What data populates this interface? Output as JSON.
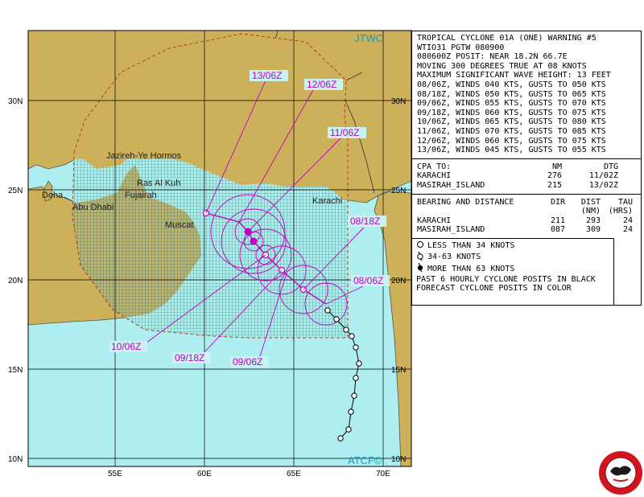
{
  "map": {
    "source_top": "JTWC",
    "source_bottom": "ATCF©",
    "lat_labels": [
      "30N",
      "25N",
      "20N",
      "15N",
      "10N"
    ],
    "lon_labels": [
      "55E",
      "60E",
      "65E",
      "70E"
    ],
    "places": [
      "Jazireh-Ye Hormos",
      "Ras Al Kuh",
      "Doha",
      "Abu Dhabi",
      "Fujairah",
      "Muscat",
      "Karachi"
    ],
    "forecast_labels": [
      "13/06Z",
      "12/06Z",
      "11/06Z",
      "08/18Z",
      "08/06Z",
      "10/06Z",
      "09/18Z",
      "09/06Z"
    ],
    "colors": {
      "land": "#cdb05a",
      "ocean": "#aeeef0",
      "danger": "#9fd9d2",
      "track": "#c000c0",
      "forecast_label_bg": "#c8f2f4"
    }
  },
  "warning": {
    "lines": [
      "TROPICAL CYCLONE 01A (ONE) WARNING #5",
      "WTIO31 PGTW 080900",
      "080600Z POSIT: NEAR 18.2N 66.7E",
      "MOVING 300 DEGREES TRUE AT 08 KNOTS",
      "MAXIMUM SIGNIFICANT WAVE HEIGHT: 13 FEET",
      "08/06Z, WINDS 040 KTS, GUSTS TO 050 KTS",
      "08/18Z, WINDS 050 KTS, GUSTS TO 065 KTS",
      "09/06Z, WINDS 055 KTS, GUSTS TO 070 KTS",
      "09/18Z, WINDS 060 KTS, GUSTS TO 075 KTS",
      "10/06Z, WINDS 065 KTS, GUSTS TO 080 KTS",
      "11/06Z, WINDS 070 KTS, GUSTS TO 085 KTS",
      "12/06Z, WINDS 060 KTS, GUSTS TO 075 KTS",
      "13/06Z, WINDS 045 KTS, GUSTS TO 055 KTS"
    ],
    "cpa": {
      "title": "CPA TO:",
      "h_nm": "NM",
      "h_dtg": "DTG",
      "rows": [
        {
          "place": "KARACHI",
          "nm": "276",
          "dtg": "11/02Z"
        },
        {
          "place": "MASIRAH_ISLAND",
          "nm": "215",
          "dtg": "13/02Z"
        }
      ]
    },
    "bearing": {
      "title": "BEARING AND DISTANCE",
      "h_dir": "DIR",
      "h_dist": "DIST",
      "h_tau": "TAU",
      "h_dist2": "(NM)",
      "h_tau2": "(HRS)",
      "rows": [
        {
          "place": "KARACHI",
          "dir": "211",
          "dist": "293",
          "tau": "24"
        },
        {
          "place": "MASIRAH_ISLAND",
          "dir": "087",
          "dist": "309",
          "tau": "24"
        }
      ]
    }
  },
  "legend": {
    "items": [
      {
        "symbol": "o",
        "text": "LESS THAN 34 KNOTS"
      },
      {
        "symbol": "6",
        "text": "34-63 KNOTS"
      },
      {
        "symbol": "9",
        "text": "MORE THAN 63 KNOTS"
      }
    ],
    "note1": "PAST 6 HOURLY CYCLONE POSITS IN BLACK",
    "note2": "FORECAST CYCLONE POSITS IN COLOR"
  }
}
